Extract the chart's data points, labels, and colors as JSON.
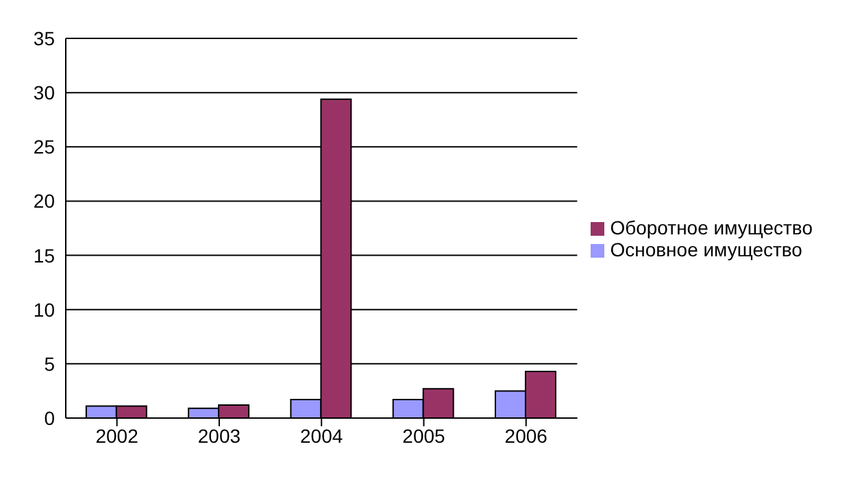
{
  "chart_data": {
    "type": "bar",
    "categories": [
      "2002",
      "2003",
      "2004",
      "2005",
      "2006"
    ],
    "series": [
      {
        "name": "Основное имущество",
        "color": "#9999ff",
        "values": [
          1.1,
          0.9,
          1.7,
          1.7,
          2.5
        ]
      },
      {
        "name": "Оборотное имущество",
        "color": "#993366",
        "values": [
          1.1,
          1.2,
          29.4,
          2.7,
          4.3
        ]
      }
    ],
    "ylim": [
      0,
      35
    ],
    "yticks": [
      0,
      5,
      10,
      15,
      20,
      25,
      30,
      35
    ],
    "grid": "y",
    "legend": "right"
  }
}
